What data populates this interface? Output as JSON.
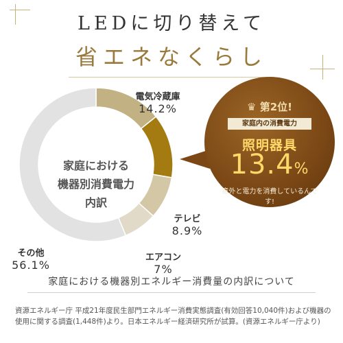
{
  "header": {
    "line1": "LEDに切り替えて",
    "line2": "省エネなくらし"
  },
  "chart_data": {
    "type": "pie",
    "title": "家庭における機器別消費電力内訳",
    "center_label_lines": [
      "家庭における",
      "機器別消費電力",
      "内訳"
    ],
    "slices": [
      {
        "label": "電気冷蔵庫",
        "value": 14.2,
        "display": "14.2%",
        "color": "#c2b283"
      },
      {
        "label": "照明器具",
        "value": 13.4,
        "display": "13.4%",
        "color": "#a37b10"
      },
      {
        "label": "テレビ",
        "value": 8.9,
        "display": "8.9%",
        "color": "#d3c7a6"
      },
      {
        "label": "エアコン",
        "value": 7,
        "display": "7%",
        "color": "#e1dac8"
      },
      {
        "label": "その他",
        "value": 56.1,
        "display": "56.1%",
        "color": "#e2e2e2"
      }
    ]
  },
  "callout": {
    "rank": "第2位!",
    "subtitle": "家庭内の消費電力",
    "category": "照明器具",
    "value": "13.4",
    "unit": "%",
    "note": "意外と電力を消費しているんです!"
  },
  "footer": {
    "subtitle": "家庭における機器別エネルギー消費量の内訳について",
    "source": "資源エネルギー庁 平成21年度民生部門エネルギー消費実態調査(有効回答10,040件)および機器の使用に関する調査(1,448件)より。日本エネルギー経済研究所が試算。(資源エネルギー庁より)"
  }
}
